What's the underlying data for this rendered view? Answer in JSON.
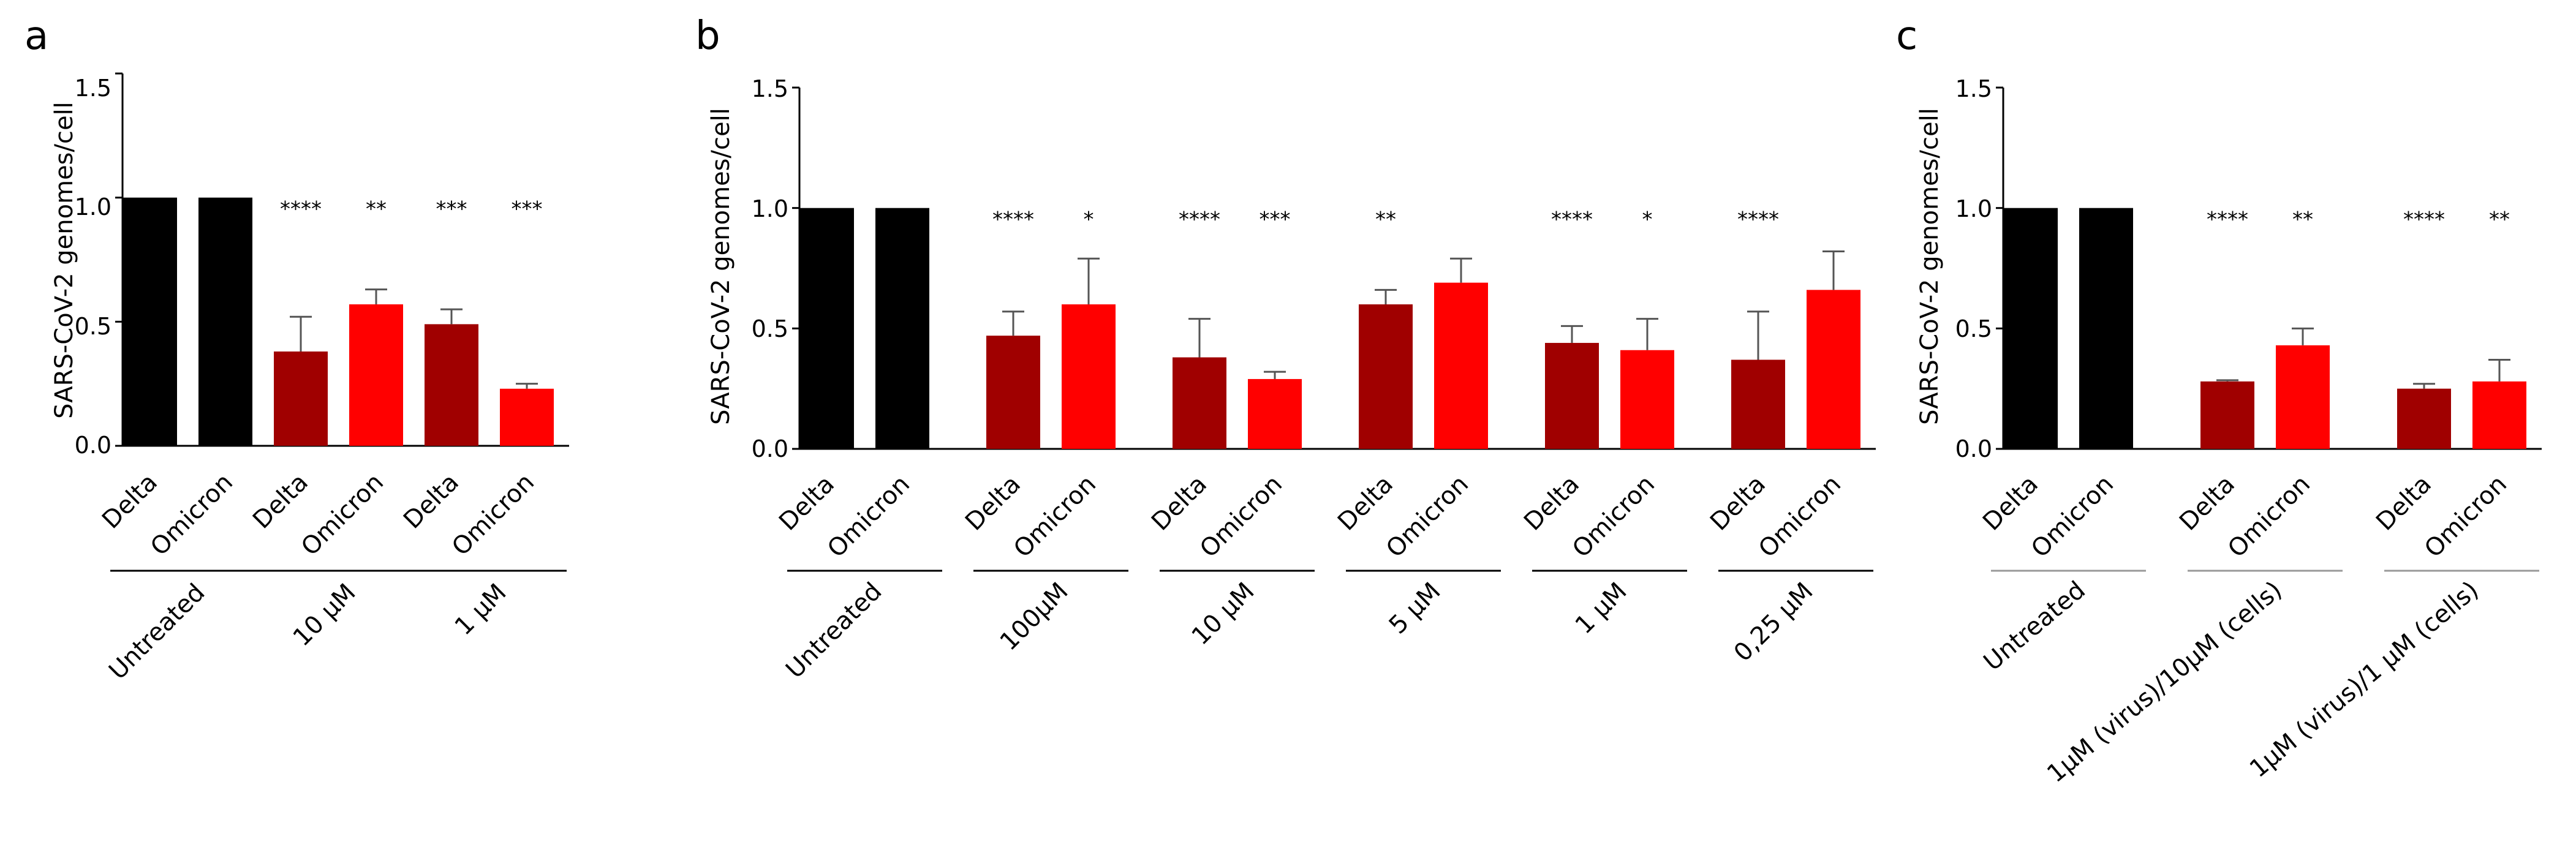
{
  "panels": [
    {
      "letter": "a",
      "ylabel": "SARS-CoV-2 genomes/cell",
      "yticks": [
        "0.0",
        "0.5",
        "1.0",
        "1.5"
      ],
      "group_line_color": "#000000"
    },
    {
      "letter": "b",
      "ylabel": "SARS-CoV-2 genomes/cell",
      "yticks": [
        "0.0",
        "0.5",
        "1.0",
        "1.5"
      ],
      "group_line_color": "#000000"
    },
    {
      "letter": "c",
      "ylabel": "SARS-CoV-2 genomes/cell",
      "yticks": [
        "0.0",
        "0.5",
        "1.0",
        "1.5"
      ],
      "group_line_color": "#999999"
    }
  ],
  "colors": {
    "untreated": "#000000",
    "delta_treated": "#a00000",
    "omicron_treated": "#ff0000",
    "error_bar": "#555555",
    "axis": "#000000"
  },
  "chart_data": [
    {
      "type": "bar",
      "ylabel": "SARS-CoV-2 genomes/cell",
      "ylim": [
        0,
        1.5
      ],
      "categories": [
        "Delta",
        "Omicron",
        "Delta",
        "Omicron",
        "Delta",
        "Omicron"
      ],
      "groups": [
        {
          "label": "Untreated",
          "bars": [
            0,
            1
          ]
        },
        {
          "label": "10 µM",
          "bars": [
            2,
            3
          ]
        },
        {
          "label": "1 µM",
          "bars": [
            4,
            5
          ]
        }
      ],
      "values": [
        1.0,
        1.0,
        0.38,
        0.57,
        0.49,
        0.23
      ],
      "errors": [
        0,
        0,
        0.14,
        0.06,
        0.06,
        0.02
      ],
      "significance": [
        "",
        "",
        "****",
        "**",
        "***",
        "***"
      ],
      "colors": [
        "#000000",
        "#000000",
        "#a00000",
        "#ff0000",
        "#a00000",
        "#ff0000"
      ]
    },
    {
      "type": "bar",
      "ylabel": "SARS-CoV-2 genomes/cell",
      "ylim": [
        0,
        1.5
      ],
      "categories": [
        "Delta",
        "Omicron",
        "Delta",
        "Omicron",
        "Delta",
        "Omicron",
        "Delta",
        "Omicron",
        "Delta",
        "Omicron",
        "Delta",
        "Omicron"
      ],
      "groups": [
        {
          "label": "Untreated",
          "bars": [
            0,
            1
          ]
        },
        {
          "label": "100µM",
          "bars": [
            2,
            3
          ]
        },
        {
          "label": "10 µM",
          "bars": [
            4,
            5
          ]
        },
        {
          "label": "5 µM",
          "bars": [
            6,
            7
          ]
        },
        {
          "label": "1 µM",
          "bars": [
            8,
            9
          ]
        },
        {
          "label": "0,25 µM",
          "bars": [
            10,
            11
          ]
        }
      ],
      "values": [
        1.0,
        1.0,
        0.47,
        0.6,
        0.38,
        0.29,
        0.6,
        0.69,
        0.44,
        0.41,
        0.37,
        0.66
      ],
      "errors": [
        0,
        0,
        0.1,
        0.19,
        0.16,
        0.03,
        0.06,
        0.1,
        0.07,
        0.13,
        0.2,
        0.16
      ],
      "significance": [
        "",
        "",
        "****",
        "*",
        "****",
        "***",
        "**",
        "",
        "****",
        "*",
        "****",
        ""
      ],
      "colors": [
        "#000000",
        "#000000",
        "#a00000",
        "#ff0000",
        "#a00000",
        "#ff0000",
        "#a00000",
        "#ff0000",
        "#a00000",
        "#ff0000",
        "#a00000",
        "#ff0000"
      ]
    },
    {
      "type": "bar",
      "ylabel": "SARS-CoV-2 genomes/cell",
      "ylim": [
        0,
        1.5
      ],
      "categories": [
        "Delta",
        "Omicron",
        "Delta",
        "Omicron",
        "Delta",
        "Omicron"
      ],
      "groups": [
        {
          "label": "Untreated",
          "bars": [
            0,
            1
          ]
        },
        {
          "label": "1µM (virus)/10µM (cells)",
          "bars": [
            2,
            3
          ]
        },
        {
          "label": "1µM (virus)/1 µM (cells)",
          "bars": [
            4,
            5
          ]
        }
      ],
      "values": [
        1.0,
        1.0,
        0.28,
        0.43,
        0.25,
        0.28
      ],
      "errors": [
        0,
        0,
        0.005,
        0.07,
        0.02,
        0.09
      ],
      "significance": [
        "",
        "",
        "****",
        "**",
        "****",
        "**"
      ],
      "colors": [
        "#000000",
        "#000000",
        "#a00000",
        "#ff0000",
        "#a00000",
        "#ff0000"
      ]
    }
  ]
}
